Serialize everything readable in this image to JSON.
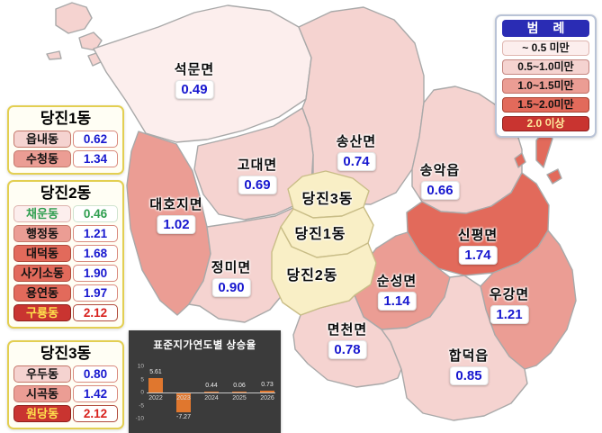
{
  "legend": {
    "title": "범 례",
    "items": [
      {
        "label": "~ 0.5 미만",
        "color": "#fceeed"
      },
      {
        "label": "0.5~1.0미만",
        "color": "#f5d3d0"
      },
      {
        "label": "1.0~1.5미만",
        "color": "#eb9d94"
      },
      {
        "label": "1.5~2.0미만",
        "color": "#e26a5b"
      },
      {
        "label": "2.0 이상",
        "color": "#c93430"
      }
    ]
  },
  "map": {
    "regions": [
      {
        "name": "석문면",
        "value": "0.49"
      },
      {
        "name": "고대면",
        "value": "0.69"
      },
      {
        "name": "송산면",
        "value": "0.74"
      },
      {
        "name": "송악읍",
        "value": "0.66"
      },
      {
        "name": "대호지면",
        "value": "1.02"
      },
      {
        "name": "정미면",
        "value": "0.90"
      },
      {
        "name": "신평면",
        "value": "1.74"
      },
      {
        "name": "순성면",
        "value": "1.14"
      },
      {
        "name": "우강면",
        "value": "1.21"
      },
      {
        "name": "면천면",
        "value": "0.78"
      },
      {
        "name": "합덕읍",
        "value": "0.85"
      }
    ],
    "district_labels": [
      {
        "name": "당진3동"
      },
      {
        "name": "당진1동"
      },
      {
        "name": "당진2동"
      }
    ]
  },
  "panels": [
    {
      "title": "당진1동",
      "rows": [
        {
          "name": "읍내동",
          "value": "0.62"
        },
        {
          "name": "수청동",
          "value": "1.34"
        }
      ]
    },
    {
      "title": "당진2동",
      "rows": [
        {
          "name": "채운동",
          "value": "0.46"
        },
        {
          "name": "행정동",
          "value": "1.21"
        },
        {
          "name": "대덕동",
          "value": "1.68"
        },
        {
          "name": "사기소동",
          "value": "1.90"
        },
        {
          "name": "용연동",
          "value": "1.97"
        },
        {
          "name": "구룡동",
          "value": "2.12"
        }
      ]
    },
    {
      "title": "당진3동",
      "rows": [
        {
          "name": "우두동",
          "value": "0.80"
        },
        {
          "name": "시곡동",
          "value": "1.42"
        },
        {
          "name": "원당동",
          "value": "2.12"
        }
      ]
    }
  ],
  "chart_data": {
    "type": "bar",
    "title": "표준지가연도별 상승율",
    "categories": [
      "2022",
      "2023",
      "2024",
      "2025",
      "2026"
    ],
    "values": [
      5.61,
      -7.27,
      0.44,
      0.06,
      0.73
    ],
    "labels": [
      "5.61",
      "-7.27",
      "0.44",
      "0.06",
      "0.73"
    ],
    "yticks": [
      10,
      5,
      0,
      -5,
      -10
    ],
    "ylim": [
      -10,
      10
    ],
    "bar_color": "#e0772e",
    "background": "#3b3b3b"
  },
  "colors": {
    "value_text": "#1818cf",
    "green_text": "#2e9e4f",
    "red_text": "#d8211d",
    "yellow_name_text": "#ffe24d",
    "district_fill": "#f9efc6",
    "panel_border": "#e3cf52",
    "legend_header": "#2a2cb4"
  }
}
